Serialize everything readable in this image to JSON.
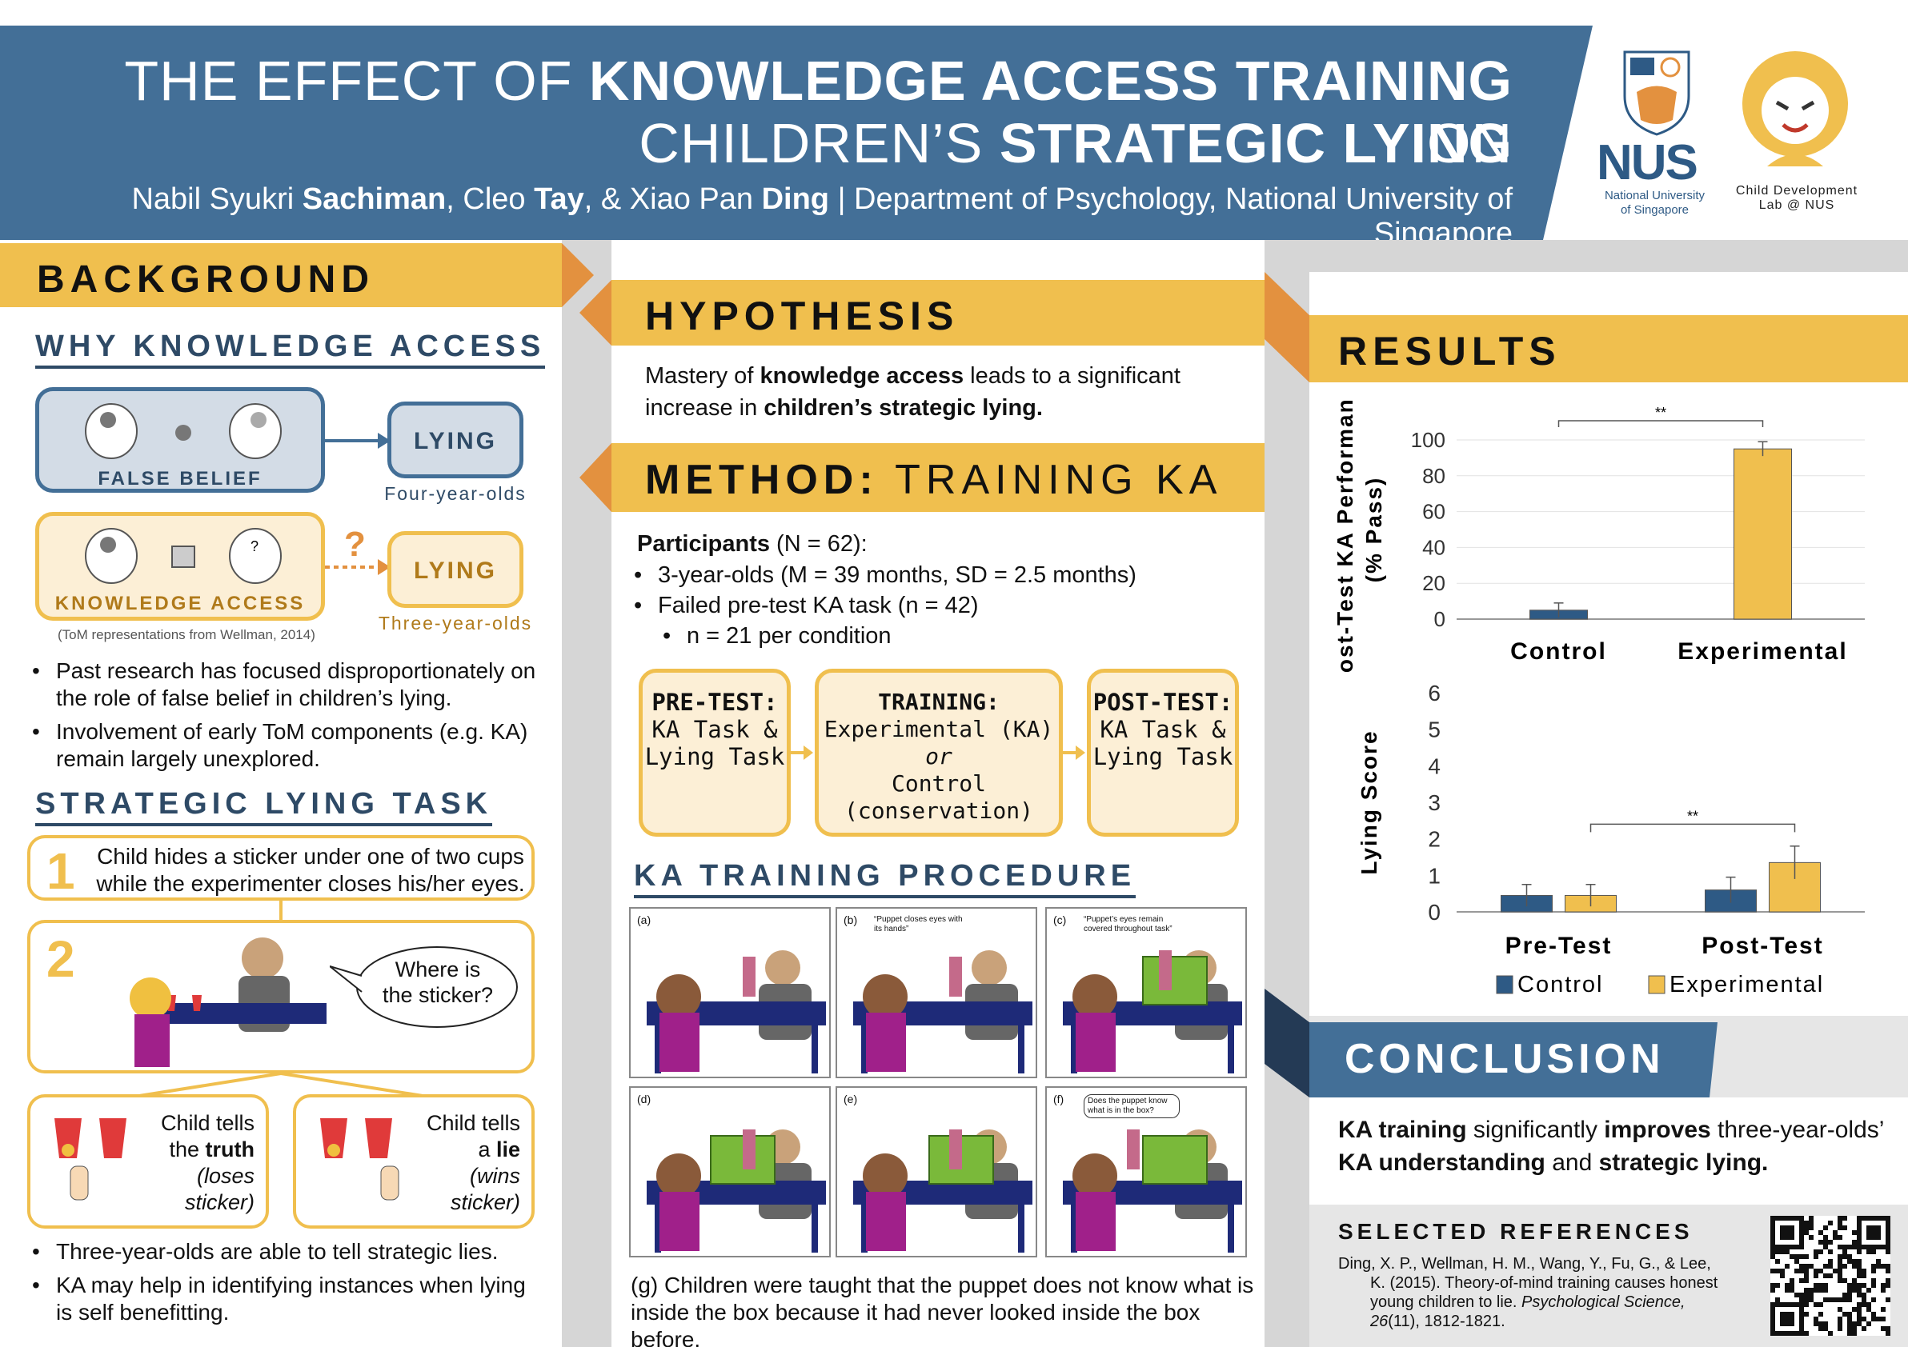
{
  "title": {
    "line1_pre": "THE EFFECT OF ",
    "line1_bold": "KNOWLEDGE ACCESS TRAINING",
    "line1_post": " ON",
    "line2_pre": "CHILDREN’S ",
    "line2_bold": "STRATEGIC LYING"
  },
  "authors": {
    "a1_first": "Nabil Syukri ",
    "a1_last": "Sachiman",
    "sep1": ", Cleo ",
    "a2_last": "Tay",
    "sep2": ", & Xiao Pan ",
    "a3_last": "Ding",
    "affil": " | Department of Psychology, National University of Singapore"
  },
  "logos": {
    "nus": "NUS",
    "nus_sub1": "National University",
    "nus_sub2": "of Singapore",
    "cdl1": "Child Development",
    "cdl2": "Lab @ NUS"
  },
  "background": {
    "heading": "BACKGROUND",
    "why_heading": "WHY KNOWLEDGE ACCESS",
    "false_belief": "FALSE BELIEF",
    "lying1": "LYING",
    "four": "Four-year-olds",
    "ka": "KNOWLEDGE ACCESS",
    "lying2": "LYING",
    "three": "Three-year-olds",
    "q": "?",
    "tom_ref": "(ToM representations from Wellman, 2014)",
    "bul1": "Past research has focused disproportionately on the role of false belief in children’s lying.",
    "bul2": "Involvement of early ToM components (e.g. KA) remain largely unexplored.",
    "slt_heading": "STRATEGIC LYING TASK",
    "step1_num": "1",
    "step1": "Child hides a sticker under one of two cups while the experimenter closes his/her eyes.",
    "step2_num": "2",
    "bubble": "Where is the sticker?",
    "truth_a": "Child tells",
    "truth_b": "the ",
    "truth_c": "truth",
    "truth_d": "(loses",
    "truth_e": "sticker)",
    "lie_a": "Child tells",
    "lie_b": "a ",
    "lie_c": "lie",
    "lie_d": "(wins",
    "lie_e": "sticker)",
    "bul3": "Three-year-olds are able to tell strategic lies.",
    "bul4": "KA may help in identifying instances when lying is self benefitting."
  },
  "hypothesis": {
    "heading": "HYPOTHESIS",
    "t1": "Mastery of ",
    "t2": "knowledge access",
    "t3": " leads to a significant increase in ",
    "t4": "children’s strategic lying."
  },
  "method": {
    "heading_bold": "METHOD:",
    "heading_rest": " TRAINING KA",
    "participants": "Participants",
    "n_part": " (N = 62):",
    "p1": "3-year-olds (M = 39 months, SD = 2.5 months)",
    "p2": "Failed pre-test KA task (n = 42)",
    "p3": "n = 21 per condition",
    "pre_h": "PRE-TEST:",
    "pre_b": "KA Task & Lying Task",
    "tr_h": "TRAINING:",
    "tr_1": "Experimental (KA)",
    "tr_2": "or",
    "tr_3": "Control",
    "tr_4": "(conservation)",
    "post_h": "POST-TEST:",
    "post_b": "KA Task & Lying Task",
    "proc_heading": "KA TRAINING PROCEDURE",
    "panels": [
      {
        "label": "(a)",
        "caption": ""
      },
      {
        "label": "(b)",
        "caption": "“Puppet closes eyes with its hands”"
      },
      {
        "label": "(c)",
        "caption": "“Puppet’s eyes remain covered throughout task”"
      },
      {
        "label": "(d)",
        "caption": ""
      },
      {
        "label": "(e)",
        "caption": ""
      },
      {
        "label": "(f)",
        "caption": "Does the puppet know what is in the box?"
      }
    ],
    "g_caption": "(g) Children were taught that the puppet does not know what is inside the box because it had never looked inside the box before."
  },
  "results": {
    "heading": "RESULTS"
  },
  "chart_data": [
    {
      "type": "bar",
      "categories": [
        "Control",
        "Experimental"
      ],
      "values": [
        5,
        95
      ],
      "errors": [
        4,
        4
      ],
      "ylabel": "Post-Test KA Performance (% Pass)",
      "ylim": [
        0,
        100
      ],
      "yticks": [
        "0",
        "20",
        "40",
        "60",
        "80",
        "100"
      ],
      "significance": "**",
      "colors": [
        "#2e5a85",
        "#f0bf4e"
      ]
    },
    {
      "type": "bar",
      "categories": [
        "Pre-Test",
        "Post-Test"
      ],
      "series": [
        {
          "name": "Control",
          "values": [
            0.45,
            0.6
          ],
          "errors": [
            0.3,
            0.35
          ]
        },
        {
          "name": "Experimental",
          "values": [
            0.45,
            1.35
          ],
          "errors": [
            0.3,
            0.45
          ]
        }
      ],
      "ylabel": "Lying Score",
      "ylim": [
        0,
        6
      ],
      "yticks": [
        "0",
        "1",
        "2",
        "3",
        "4",
        "5",
        "6"
      ],
      "significance": "**",
      "legend": "bottom",
      "colors": [
        "#2e5a85",
        "#f0bf4e"
      ]
    }
  ],
  "conclusion": {
    "heading": "CONCLUSION",
    "t1": "KA training",
    "t2": " significantly ",
    "t3": "improves",
    "t4": " three-year-olds’ ",
    "t5": "KA understanding",
    "t6": " and ",
    "t7": "strategic lying."
  },
  "refs": {
    "heading": "SELECTED REFERENCES",
    "r1": "Ding, X. P., Wellman, H. M., Wang, Y., Fu, G., & Lee, K. (2015). Theory-of-mind training causes honest young children to lie. ",
    "r2": "Psychological Science, 26",
    "r3": "(11), 1812-1821."
  },
  "colors": {
    "blue": "#436f97",
    "gold": "#f0bf4e",
    "orange": "#e3913f",
    "navy": "#2e4a66",
    "cream": "#fcefd6",
    "lightblue": "#d3dce6"
  }
}
